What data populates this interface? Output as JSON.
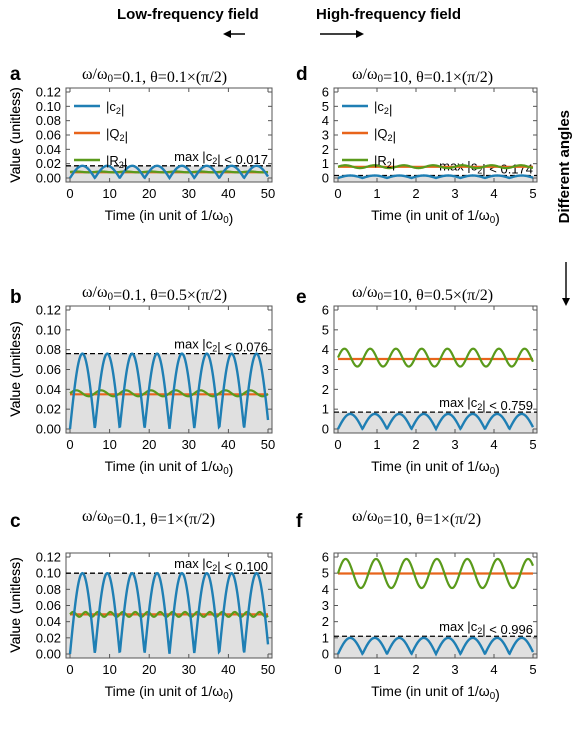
{
  "header": {
    "left": "Low-frequency field",
    "right": "High-frequency field",
    "side": "Different angles"
  },
  "colors": {
    "c2": "#1f7fb4",
    "Q2": "#e8641b",
    "R2": "#5a9a1b",
    "fill": "#e0e0e0",
    "fill_light": "#f2f2f2"
  },
  "chart_data": [
    {
      "id": "a",
      "type": "line",
      "label": "a",
      "title": "ω/ω0=0.1, θ=0.1×(π/2)",
      "xlabel": "Time (in unit of 1/ω0)",
      "ylabel": "Value (unitless)",
      "xlim": [
        0,
        50
      ],
      "ylim": [
        0,
        0.12
      ],
      "xticks": [
        "0",
        "10",
        "20",
        "30",
        "40",
        "50"
      ],
      "yticks": [
        "0.00",
        "0.02",
        "0.04",
        "0.06",
        "0.08",
        "0.10",
        "0.12"
      ],
      "legend": [
        "|c2|",
        "|Q2|",
        "|R2|"
      ],
      "annotation": "max |c2| < 0.017",
      "max_c2": 0.017,
      "Q2": 0.008,
      "R2_mean": 0.0085,
      "R2_amp": 0.0006,
      "c2_period": 6.28,
      "R2_period": 6.28
    },
    {
      "id": "b",
      "type": "line",
      "label": "b",
      "title": "ω/ω0=0.1, θ=0.5×(π/2)",
      "xlabel": "Time (in unit of 1/ω0)",
      "ylabel": "Value (unitless)",
      "xlim": [
        0,
        50
      ],
      "ylim": [
        0,
        0.12
      ],
      "xticks": [
        "0",
        "10",
        "20",
        "30",
        "40",
        "50"
      ],
      "yticks": [
        "0.00",
        "0.02",
        "0.04",
        "0.06",
        "0.08",
        "0.10",
        "0.12"
      ],
      "annotation": "max |c2| < 0.076",
      "max_c2": 0.076,
      "Q2": 0.035,
      "R2_mean": 0.036,
      "R2_amp": 0.003,
      "c2_period": 6.28,
      "R2_period": 6.28
    },
    {
      "id": "c",
      "type": "line",
      "label": "c",
      "title": "ω/ω0=0.1, θ=1×(π/2)",
      "xlabel": "Time (in unit of 1/ω0)",
      "ylabel": "Value (unitless)",
      "xlim": [
        0,
        50
      ],
      "ylim": [
        0,
        0.12
      ],
      "xticks": [
        "0",
        "10",
        "20",
        "30",
        "40",
        "50"
      ],
      "yticks": [
        "0.00",
        "0.02",
        "0.04",
        "0.06",
        "0.08",
        "0.10",
        "0.12"
      ],
      "annotation": "max |c2| < 0.100",
      "max_c2": 0.1,
      "Q2": 0.049,
      "R2_mean": 0.049,
      "R2_amp": 0.003,
      "c2_period": 6.28,
      "R2_period": 3.14
    },
    {
      "id": "d",
      "type": "line",
      "label": "d",
      "title": "ω/ω0=10, θ=0.1×(π/2)",
      "xlabel": "Time (in unit of 1/ω0)",
      "ylabel": "",
      "xlim": [
        0,
        5
      ],
      "ylim": [
        0,
        6
      ],
      "xticks": [
        "0",
        "1",
        "2",
        "3",
        "4",
        "5"
      ],
      "yticks": [
        "0",
        "1",
        "2",
        "3",
        "4",
        "5",
        "6"
      ],
      "legend": [
        "|c2|",
        "|Q2|",
        "|R2|"
      ],
      "annotation": "max |c2| < 0.174",
      "max_c2": 0.174,
      "Q2": 0.78,
      "R2_mean": 0.79,
      "R2_amp": 0.1,
      "c2_period": 0.628,
      "R2_period": 0.75
    },
    {
      "id": "e",
      "type": "line",
      "label": "e",
      "title": "ω/ω0=10, θ=0.5×(π/2)",
      "xlabel": "Time (in unit of 1/ω0)",
      "ylabel": "",
      "xlim": [
        0,
        5
      ],
      "ylim": [
        0,
        6
      ],
      "xticks": [
        "0",
        "1",
        "2",
        "3",
        "4",
        "5"
      ],
      "yticks": [
        "0",
        "1",
        "2",
        "3",
        "4",
        "5",
        "6"
      ],
      "annotation": "max |c2| < 0.759",
      "max_c2": 0.759,
      "dash": 0.85,
      "Q2": 3.53,
      "R2_mean": 3.6,
      "R2_amp": 0.45,
      "c2_period": 0.628,
      "R2_period": 0.66
    },
    {
      "id": "f",
      "type": "line",
      "label": "f",
      "title": "ω/ω0=10, θ=1×(π/2)",
      "xlabel": "Time (in unit of 1/ω0)",
      "ylabel": "",
      "xlim": [
        0,
        5
      ],
      "ylim": [
        0,
        6
      ],
      "xticks": [
        "0",
        "1",
        "2",
        "3",
        "4",
        "5"
      ],
      "yticks": [
        "0",
        "1",
        "2",
        "3",
        "4",
        "5",
        "6"
      ],
      "annotation": "max |c2| < 0.996",
      "max_c2": 0.996,
      "dash": 1.1,
      "Q2": 4.98,
      "R2_mean": 4.98,
      "R2_amp": 0.9,
      "c2_period": 0.628,
      "R2_period": 0.78
    }
  ]
}
